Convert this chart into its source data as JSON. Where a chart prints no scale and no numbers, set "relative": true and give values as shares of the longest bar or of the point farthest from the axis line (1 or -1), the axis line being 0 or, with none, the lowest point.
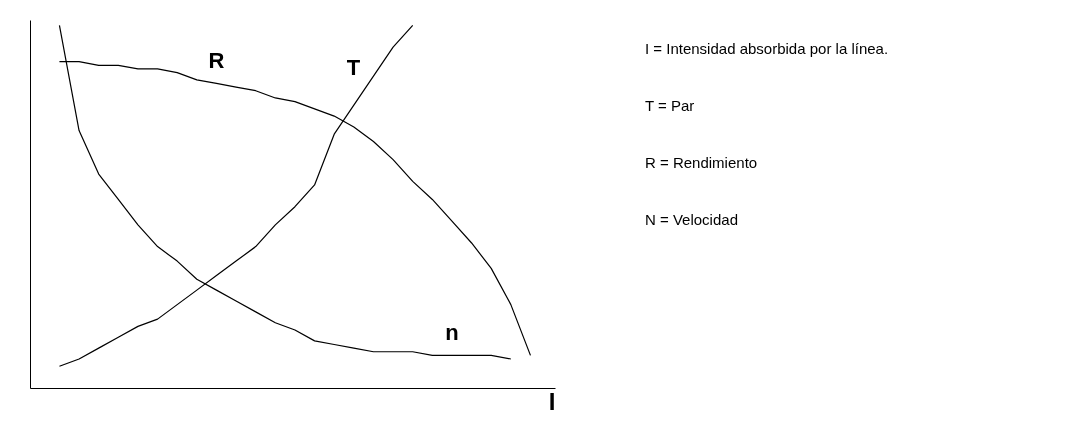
{
  "chart_data": {
    "type": "line",
    "relative": true,
    "xlabel": "I",
    "categories": [
      null,
      null,
      null,
      null,
      null,
      null,
      null,
      null,
      null,
      null,
      null,
      null,
      null,
      null,
      null,
      null,
      null,
      null,
      null,
      null,
      null,
      null,
      null,
      null,
      null,
      null
    ],
    "series": [
      {
        "name": "T",
        "color": "#000000",
        "values": [
          null,
          0.06,
          0.08,
          0.11,
          0.14,
          0.17,
          0.19,
          0.23,
          0.27,
          0.31,
          0.35,
          0.39,
          0.45,
          0.5,
          0.56,
          0.7,
          0.78,
          0.86,
          0.94,
          1.0,
          null,
          null,
          null,
          null,
          null,
          null
        ]
      },
      {
        "name": "R",
        "color": "#000000",
        "values": [
          null,
          0.9,
          0.9,
          0.89,
          0.89,
          0.88,
          0.88,
          0.87,
          0.85,
          0.84,
          0.83,
          0.82,
          0.8,
          0.79,
          0.77,
          0.75,
          0.72,
          0.68,
          0.63,
          0.57,
          0.52,
          0.46,
          0.4,
          0.33,
          0.23,
          0.09
        ]
      },
      {
        "name": "n",
        "color": "#000000",
        "values": [
          null,
          1.0,
          0.71,
          0.59,
          0.52,
          0.45,
          0.39,
          0.35,
          0.3,
          0.27,
          0.24,
          0.21,
          0.18,
          0.16,
          0.13,
          0.12,
          0.11,
          0.1,
          0.1,
          0.1,
          0.09,
          0.09,
          0.09,
          0.09,
          0.08,
          null
        ]
      }
    ],
    "marker": "none",
    "line_style": "solid",
    "annotations": [
      "I = Intensidad absorbida por la línea.",
      "T = Par",
      "R = Rendimiento",
      "N = Velocidad"
    ]
  }
}
